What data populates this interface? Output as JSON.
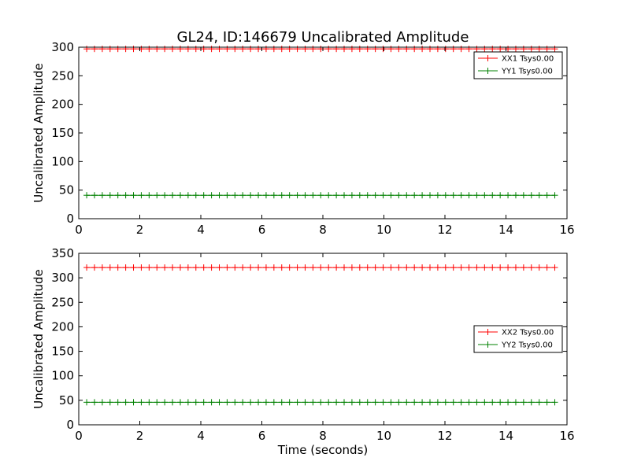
{
  "chart_data": [
    {
      "type": "line",
      "title": "GL24, ID:146679 Uncalibrated Amplitude",
      "xlabel": "",
      "ylabel": "Uncalibrated Amplitude",
      "xlim": [
        0,
        16
      ],
      "ylim": [
        0,
        300
      ],
      "xticks": [
        0,
        2,
        4,
        6,
        8,
        10,
        12,
        14,
        16
      ],
      "yticks": [
        0,
        50,
        100,
        150,
        200,
        250,
        300
      ],
      "legend_position": "top-right",
      "x_range": [
        0.26,
        15.6
      ],
      "num_points": 61,
      "series": [
        {
          "name": "XX1 Tsys0.00",
          "color": "#ff0000",
          "value": 297
        },
        {
          "name": "YY1 Tsys0.00",
          "color": "#008000",
          "value": 41
        }
      ]
    },
    {
      "type": "line",
      "title": "",
      "xlabel": "Time (seconds)",
      "ylabel": "Uncalibrated Amplitude",
      "xlim": [
        0,
        16
      ],
      "ylim": [
        0,
        350
      ],
      "xticks": [
        0,
        2,
        4,
        6,
        8,
        10,
        12,
        14,
        16
      ],
      "yticks": [
        0,
        50,
        100,
        150,
        200,
        250,
        300,
        350
      ],
      "legend_position": "center-right",
      "x_range": [
        0.26,
        15.6
      ],
      "num_points": 61,
      "series": [
        {
          "name": "XX2 Tsys0.00",
          "color": "#ff0000",
          "value": 321
        },
        {
          "name": "YY2 Tsys0.00",
          "color": "#008000",
          "value": 46
        }
      ]
    }
  ]
}
